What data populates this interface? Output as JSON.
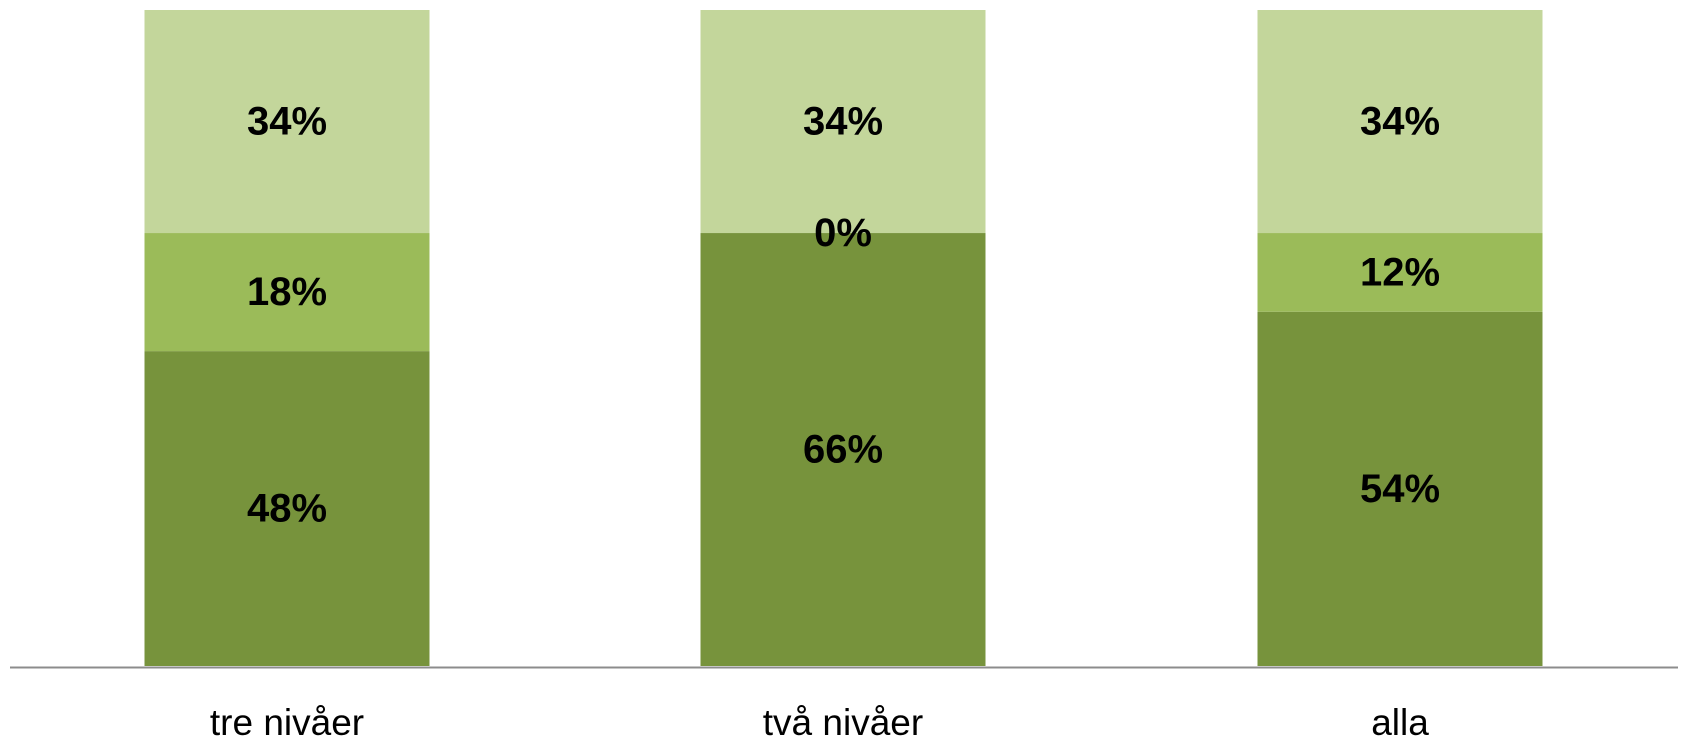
{
  "chart_data": {
    "type": "bar",
    "stacked": true,
    "categories": [
      "tre nivåer",
      "två nivåer",
      "alla"
    ],
    "series": [
      {
        "values": [
          48,
          66,
          54
        ],
        "labels": [
          "48%",
          "66%",
          "54%"
        ],
        "color": "#77933c"
      },
      {
        "values": [
          18,
          0,
          12
        ],
        "labels": [
          "18%",
          "0%",
          "12%"
        ],
        "color": "#9bbb59"
      },
      {
        "values": [
          34,
          34,
          34
        ],
        "labels": [
          "34%",
          "34%",
          "34%"
        ],
        "color": "#c3d69b"
      }
    ],
    "ylim": [
      0,
      100
    ],
    "axis_color": "#8c8c8c",
    "grid": false,
    "legend": "none"
  }
}
